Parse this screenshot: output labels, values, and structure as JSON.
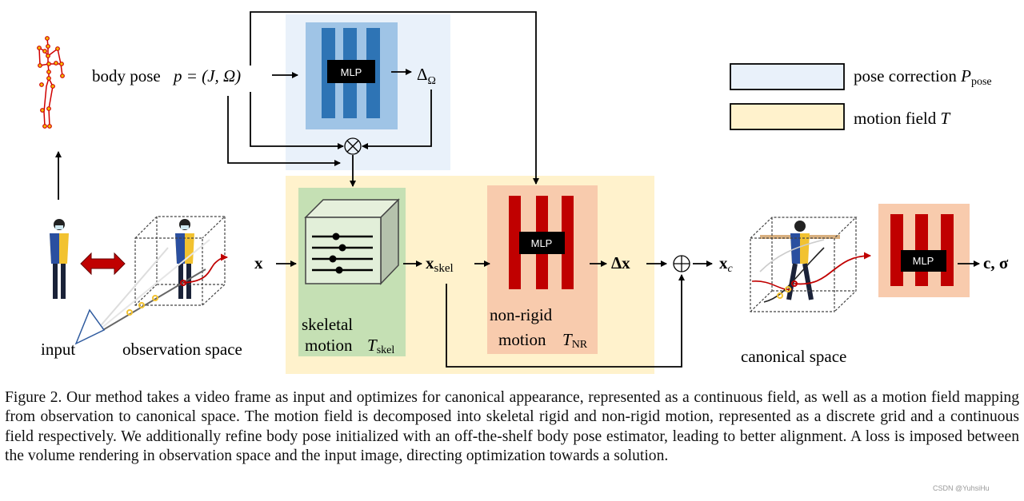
{
  "diagram": {
    "body_pose_label": "body pose",
    "pose_eq": "p = (J, Ω)",
    "delta_omega": "Δ",
    "delta_omega_sub": "Ω",
    "mlp_label": "MLP",
    "otimes": "⊗",
    "oplus": "⊕",
    "x_label": "x",
    "x_skel": "x",
    "x_skel_sub": "skel",
    "delta_x": "Δx",
    "x_c": "x",
    "x_c_sub": "c",
    "output": "c, σ",
    "skeletal_line1": "skeletal",
    "skeletal_line2": "motion",
    "t_skel": "T",
    "t_skel_sub": "skel",
    "nonrigid_line1": "non-rigid",
    "nonrigid_line2": "motion",
    "t_nr": "T",
    "t_nr_sub": "NR",
    "input_label": "input",
    "observation_label": "observation space",
    "canonical_label": "canonical space",
    "legend": [
      {
        "label": "pose correction ",
        "symbol": "P",
        "sub": "pose",
        "color": "#e9f1fa"
      },
      {
        "label": "motion field ",
        "symbol": "T",
        "sub": "",
        "color": "#fff2cc"
      }
    ],
    "colors": {
      "pose_bg": "#e9f1fa",
      "pose_inner": "#9fc4e6",
      "pose_bars": "#2e74b5",
      "motion_bg": "#fff2cc",
      "skeletal_bg": "#c5e0b4",
      "nonrigid_bg": "#f8cbad",
      "mlp_bars": "#c00000",
      "skeleton": "#d00000"
    }
  },
  "caption": "Figure 2. Our method takes a video frame as input and optimizes for canonical appearance, represented as a continuous field, as well as a motion field mapping from observation to canonical space. The motion field is decomposed into skeletal rigid and non-rigid motion, represented as a discrete grid and a continuous field respectively. We additionally refine body pose initialized with an off-the-shelf body pose estimator, leading to better alignment. A loss is imposed between the volume rendering in observation space and the input image, directing optimization towards a solution.",
  "watermark": "CSDN @YuhsiHu"
}
